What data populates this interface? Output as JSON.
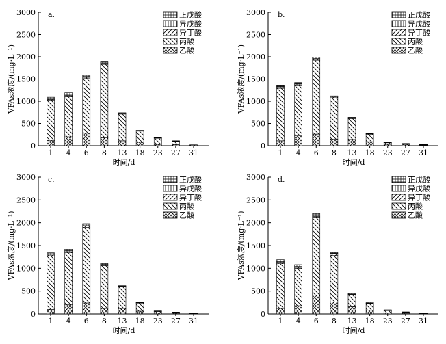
{
  "legend_labels": [
    "正戊酸",
    "异戊酸",
    "异丁酸",
    "丙酸",
    "乙酸"
  ],
  "chart_data": [
    {
      "type": "bar",
      "stacked": true,
      "panel_label": "a.",
      "categories": [
        "1",
        "4",
        "6",
        "8",
        "13",
        "18",
        "23",
        "27",
        "31"
      ],
      "xlabel": "时间/d",
      "ylabel": "VFAs浓度/(mg·L⁻¹)",
      "ylim": [
        0,
        3000
      ],
      "yticks": [
        0,
        500,
        1000,
        1500,
        2000,
        2500,
        3000
      ],
      "series": [
        {
          "name": "乙酸",
          "values": [
            120,
            200,
            280,
            180,
            110,
            80,
            30,
            25,
            5
          ]
        },
        {
          "name": "丙酸",
          "values": [
            900,
            900,
            1240,
            1650,
            600,
            250,
            145,
            80,
            15
          ]
        },
        {
          "name": "异丁酸",
          "values": [
            20,
            30,
            20,
            25,
            10,
            5,
            2,
            2,
            0
          ]
        },
        {
          "name": "异戊酸",
          "values": [
            20,
            25,
            25,
            20,
            8,
            5,
            2,
            2,
            0
          ]
        },
        {
          "name": "正戊酸",
          "values": [
            30,
            35,
            25,
            25,
            12,
            5,
            1,
            1,
            0
          ]
        }
      ]
    },
    {
      "type": "bar",
      "stacked": true,
      "panel_label": "b.",
      "categories": [
        "1",
        "4",
        "6",
        "8",
        "13",
        "18",
        "23",
        "27",
        "31"
      ],
      "xlabel": "时间/d",
      "ylabel": "VFAs浓度/(mg·L⁻¹)",
      "ylim": [
        0,
        3000
      ],
      "yticks": [
        0,
        500,
        1000,
        1500,
        2000,
        2500,
        3000
      ],
      "series": [
        {
          "name": "乙酸",
          "values": [
            110,
            220,
            260,
            150,
            140,
            90,
            30,
            20,
            10
          ]
        },
        {
          "name": "丙酸",
          "values": [
            1180,
            1130,
            1660,
            920,
            470,
            170,
            40,
            25,
            15
          ]
        },
        {
          "name": "异丁酸",
          "values": [
            20,
            20,
            20,
            20,
            10,
            5,
            3,
            2,
            1
          ]
        },
        {
          "name": "异戊酸",
          "values": [
            20,
            20,
            25,
            15,
            10,
            5,
            3,
            2,
            1
          ]
        },
        {
          "name": "正戊酸",
          "values": [
            20,
            30,
            25,
            15,
            10,
            5,
            4,
            1,
            3
          ]
        }
      ]
    },
    {
      "type": "bar",
      "stacked": true,
      "panel_label": "c.",
      "categories": [
        "1",
        "4",
        "6",
        "8",
        "13",
        "18",
        "23",
        "27",
        "31"
      ],
      "xlabel": "时间/d",
      "ylabel": "VFAs浓度/(mg·L⁻¹)",
      "ylim": [
        0,
        3000
      ],
      "yticks": [
        0,
        500,
        1000,
        1500,
        2000,
        2500,
        3000
      ],
      "series": [
        {
          "name": "乙酸",
          "values": [
            100,
            200,
            240,
            120,
            120,
            60,
            25,
            15,
            8
          ]
        },
        {
          "name": "丙酸",
          "values": [
            1170,
            1140,
            1660,
            940,
            470,
            180,
            35,
            20,
            10
          ]
        },
        {
          "name": "异丁酸",
          "values": [
            20,
            25,
            25,
            15,
            10,
            5,
            2,
            1,
            1
          ]
        },
        {
          "name": "异戊酸",
          "values": [
            20,
            25,
            25,
            15,
            10,
            3,
            2,
            1,
            1
          ]
        },
        {
          "name": "正戊酸",
          "values": [
            30,
            30,
            30,
            20,
            10,
            2,
            1,
            3,
            0
          ]
        }
      ]
    },
    {
      "type": "bar",
      "stacked": true,
      "panel_label": "d.",
      "categories": [
        "1",
        "4",
        "6",
        "8",
        "13",
        "18",
        "23",
        "27",
        "31"
      ],
      "xlabel": "时间/d",
      "ylabel": "VFAs浓度/(mg·L⁻¹)",
      "ylim": [
        0,
        3000
      ],
      "yticks": [
        0,
        500,
        1000,
        1500,
        2000,
        2500,
        3000
      ],
      "series": [
        {
          "name": "乙酸",
          "values": [
            120,
            180,
            410,
            260,
            160,
            80,
            20,
            15,
            8
          ]
        },
        {
          "name": "丙酸",
          "values": [
            980,
            820,
            1700,
            1020,
            260,
            140,
            55,
            20,
            10
          ]
        },
        {
          "name": "异丁酸",
          "values": [
            30,
            20,
            30,
            30,
            10,
            10,
            5,
            2,
            1
          ]
        },
        {
          "name": "异戊酸",
          "values": [
            20,
            20,
            20,
            15,
            10,
            5,
            5,
            2,
            1
          ]
        },
        {
          "name": "正戊酸",
          "values": [
            40,
            40,
            40,
            25,
            20,
            15,
            5,
            6,
            5
          ]
        }
      ]
    }
  ]
}
